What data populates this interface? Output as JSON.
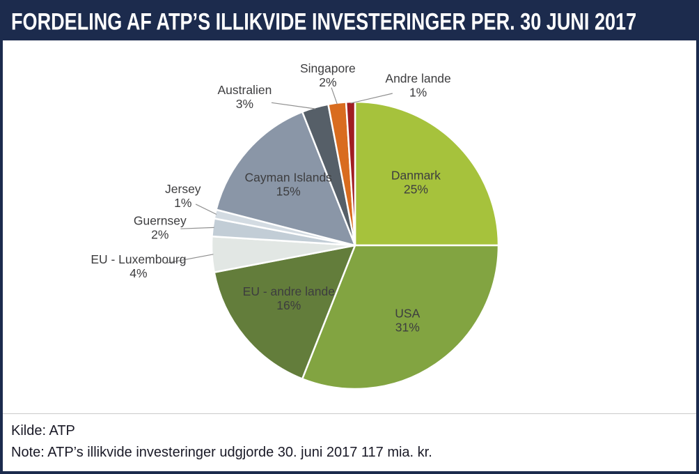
{
  "header": {
    "title": "FORDELING AF ATP’S ILLIKVIDE INVESTERINGER PER. 30 JUNI 2017"
  },
  "chart_data": {
    "type": "pie",
    "title": "FORDELING AF ATP’S ILLIKVIDE INVESTERINGER PER. 30 JUNI 2017",
    "unit": "%",
    "direction": "clockwise",
    "start_angle_deg": 0,
    "legend": "none (direct slice labels with leader lines)",
    "slices": [
      {
        "label": "Danmark",
        "value": 25,
        "pct_label": "25%",
        "color": "#a6c23c",
        "label_placement": "inside",
        "label_r": 0.6
      },
      {
        "label": "USA",
        "value": 31,
        "pct_label": "31%",
        "color": "#82a441",
        "label_placement": "inside",
        "label_r": 0.65
      },
      {
        "label": "EU - andre lande",
        "value": 16,
        "pct_label": "16%",
        "color": "#637d3b",
        "label_placement": "inside",
        "label_r": 0.6
      },
      {
        "label": "EU - Luxembourg",
        "value": 4,
        "pct_label": "4%",
        "color": "#e2e7e4",
        "label_placement": "outside",
        "label_x": -1.51,
        "label_y": 0.16
      },
      {
        "label": "Guernsey",
        "value": 2,
        "pct_label": "2%",
        "color": "#c2cdd6",
        "label_placement": "outside",
        "label_x": -1.36,
        "label_y": -0.11
      },
      {
        "label": "Jersey",
        "value": 1,
        "pct_label": "1%",
        "color": "#d3dbe2",
        "label_placement": "outside",
        "label_x": -1.2,
        "label_y": -0.33
      },
      {
        "label": "Cayman Islands",
        "value": 15,
        "pct_label": "15%",
        "color": "#8a96a7",
        "label_placement": "inside",
        "label_r": 0.62
      },
      {
        "label": "Australien",
        "value": 3,
        "pct_label": "3%",
        "color": "#565f68",
        "label_placement": "outside",
        "label_x": -0.77,
        "label_y": -1.02
      },
      {
        "label": "Singapore",
        "value": 2,
        "pct_label": "2%",
        "color": "#d96c1f",
        "label_placement": "outside",
        "label_x": -0.19,
        "label_y": -1.17
      },
      {
        "label": "Andre lande",
        "value": 1,
        "pct_label": "1%",
        "color": "#a01d22",
        "label_placement": "outside",
        "label_x": 0.44,
        "label_y": -1.1
      }
    ]
  },
  "footer": {
    "kilde": "Kilde: ATP",
    "note": "Note: ATP’s illikvide investeringer udgjorde 30. juni 2017 117 mia. kr."
  }
}
